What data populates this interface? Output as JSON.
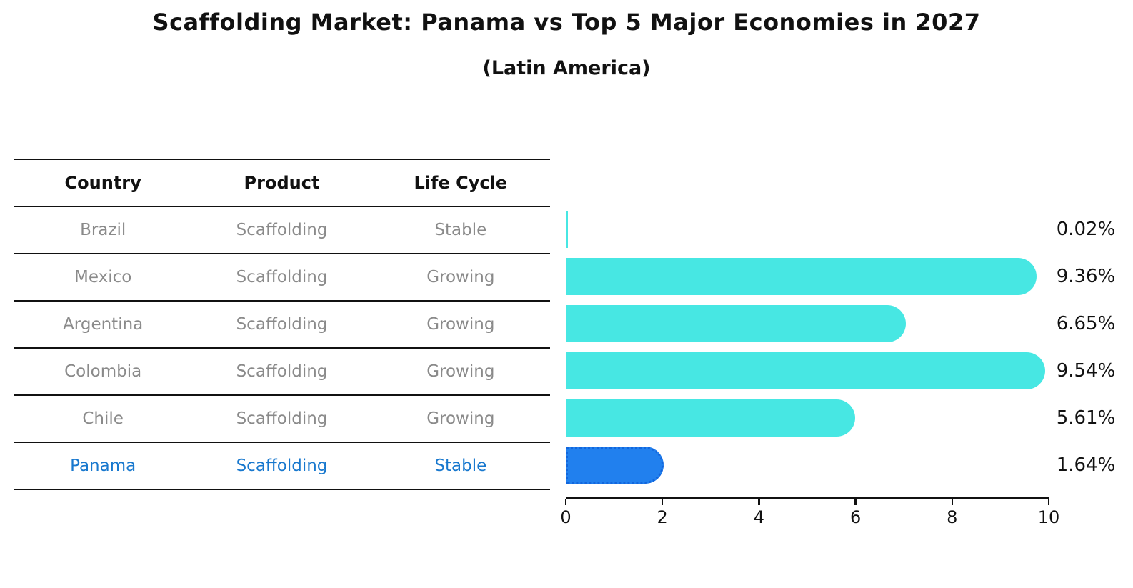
{
  "title": "Scaffolding Market: Panama vs Top 5 Major Economies in 2027",
  "subtitle": "(Latin America)",
  "table": {
    "headers": [
      "Country",
      "Product",
      "Life Cycle"
    ],
    "rows": [
      {
        "country": "Brazil",
        "product": "Scaffolding",
        "life_cycle": "Stable",
        "highlight": false
      },
      {
        "country": "Mexico",
        "product": "Scaffolding",
        "life_cycle": "Growing",
        "highlight": false
      },
      {
        "country": "Argentina",
        "product": "Scaffolding",
        "life_cycle": "Growing",
        "highlight": false
      },
      {
        "country": "Colombia",
        "product": "Scaffolding",
        "life_cycle": "Growing",
        "highlight": false
      },
      {
        "country": "Chile",
        "product": "Scaffolding",
        "life_cycle": "Growing",
        "highlight": false
      },
      {
        "country": "Panama",
        "product": "Scaffolding",
        "life_cycle": "Stable",
        "highlight": true
      }
    ]
  },
  "chart_data": {
    "type": "bar",
    "orientation": "horizontal",
    "title": "Scaffolding Market: Panama vs Top 5 Major Economies in 2027",
    "subtitle": "(Latin America)",
    "categories": [
      "Brazil",
      "Mexico",
      "Argentina",
      "Colombia",
      "Chile",
      "Panama"
    ],
    "values": [
      0.02,
      9.36,
      6.65,
      9.54,
      5.61,
      1.64
    ],
    "data_labels": [
      "0.02%",
      "9.36%",
      "6.65%",
      "9.54%",
      "5.61%",
      "1.64%"
    ],
    "xlim": [
      0,
      10
    ],
    "x_ticks": [
      "0",
      "2",
      "4",
      "6",
      "8",
      "10"
    ],
    "grid": false,
    "legend": "none",
    "bar_color": "#47e7e3",
    "highlight_bar_color": "#2180ee",
    "highlight_bar_border": "#1266dd",
    "highlight_index": 5
  },
  "colors": {
    "background": "#ffffff",
    "text": "#111111",
    "table_text": "#8a8a8a",
    "highlight_text": "#1878ce",
    "line": "#111111"
  }
}
